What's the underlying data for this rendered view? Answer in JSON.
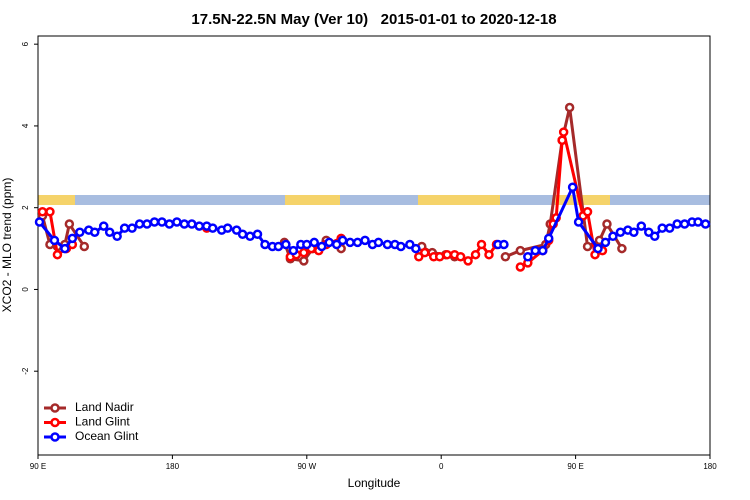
{
  "chart_data": {
    "type": "line",
    "title": "17.5N-22.5N May (Ver 10)   2015-01-01 to 2020-12-18",
    "xlabel": "Longitude",
    "ylabel": "XCO2 - MLO trend (ppm)",
    "xlim": [
      90,
      540
    ],
    "xticks": [
      {
        "value": 90,
        "label": "90 E"
      },
      180,
      {
        "value": 270,
        "label": "90 W"
      },
      {
        "value": 360,
        "label": "0"
      },
      {
        "value": 450,
        "label": "90 E"
      },
      {
        "value": 540,
        "label": "180"
      }
    ],
    "ylim": [
      -4.05,
      6.2
    ],
    "yticks": [
      -2,
      0,
      2,
      4,
      6
    ],
    "legend": "bottom-left",
    "series": [
      {
        "name": "Land Nadir",
        "color": "#a52a2a",
        "x": [
          93,
          98,
          103,
          108,
          111,
          121,
          200,
          255,
          259,
          268,
          274,
          283,
          293,
          320,
          347,
          354,
          363,
          369,
          390,
          403,
          413,
          430,
          433,
          441,
          446,
          458,
          466,
          471,
          481
        ],
        "values": [
          1.8,
          1.1,
          1.05,
          1.1,
          1.6,
          1.05,
          null,
          1.15,
          0.75,
          0.7,
          1.0,
          1.2,
          1.0,
          null,
          1.05,
          0.9,
          0.85,
          0.8,
          null,
          0.8,
          0.95,
          1.1,
          1.6,
          3.65,
          4.45,
          1.05,
          1.2,
          1.6,
          1.0
        ]
      },
      {
        "name": "Land Glint",
        "color": "#ff0000",
        "x": [
          93,
          98,
          103,
          109,
          113,
          160,
          203,
          230,
          259,
          263,
          268,
          273,
          278,
          283,
          293,
          320,
          345,
          349,
          355,
          359,
          364,
          369,
          373,
          378,
          383,
          387,
          392,
          397,
          405,
          413,
          418,
          428,
          432,
          435,
          437,
          441,
          442,
          455,
          458,
          463,
          468
        ],
        "values": [
          1.9,
          1.9,
          0.85,
          1.0,
          1.1,
          null,
          1.5,
          null,
          0.8,
          0.85,
          0.9,
          1.0,
          0.95,
          1.1,
          1.25,
          null,
          0.8,
          0.9,
          0.8,
          0.8,
          0.85,
          0.85,
          0.8,
          0.7,
          0.85,
          1.1,
          0.85,
          1.1,
          null,
          0.55,
          0.65,
          0.95,
          1.2,
          1.6,
          1.75,
          3.65,
          3.85,
          1.8,
          1.9,
          0.85,
          0.95
        ]
      },
      {
        "name": "Ocean Glint",
        "color": "#0000ff",
        "x": [
          91,
          101,
          108,
          113,
          118,
          124,
          128,
          134,
          138,
          143,
          148,
          153,
          158,
          163,
          168,
          173,
          178,
          183,
          188,
          193,
          198,
          203,
          207,
          213,
          217,
          223,
          227,
          232,
          237,
          242,
          247,
          251,
          256,
          261,
          266,
          270,
          275,
          280,
          285,
          290,
          294,
          299,
          304,
          309,
          314,
          318,
          324,
          329,
          333,
          339,
          343,
          370,
          398,
          402,
          410,
          418,
          423,
          428,
          432,
          448,
          452,
          465,
          470,
          475,
          480,
          485,
          489,
          494,
          499,
          503,
          508,
          513,
          518,
          523,
          528,
          532,
          537
        ],
        "values": [
          1.65,
          1.2,
          1.0,
          1.25,
          1.4,
          1.45,
          1.4,
          1.55,
          1.4,
          1.3,
          1.5,
          1.5,
          1.6,
          1.6,
          1.65,
          1.65,
          1.6,
          1.65,
          1.6,
          1.6,
          1.55,
          1.55,
          1.5,
          1.45,
          1.5,
          1.45,
          1.35,
          1.3,
          1.35,
          1.1,
          1.05,
          1.05,
          1.1,
          0.95,
          1.1,
          1.1,
          1.15,
          1.05,
          1.15,
          1.1,
          1.2,
          1.15,
          1.15,
          1.2,
          1.1,
          1.15,
          1.1,
          1.1,
          1.05,
          1.1,
          1.0,
          null,
          1.1,
          1.1,
          null,
          0.8,
          0.95,
          0.95,
          1.25,
          2.5,
          1.65,
          1.0,
          1.15,
          1.3,
          1.4,
          1.45,
          1.4,
          1.55,
          1.4,
          1.3,
          1.5,
          1.5,
          1.6,
          1.6,
          1.65,
          1.65,
          1.6
        ]
      }
    ]
  }
}
